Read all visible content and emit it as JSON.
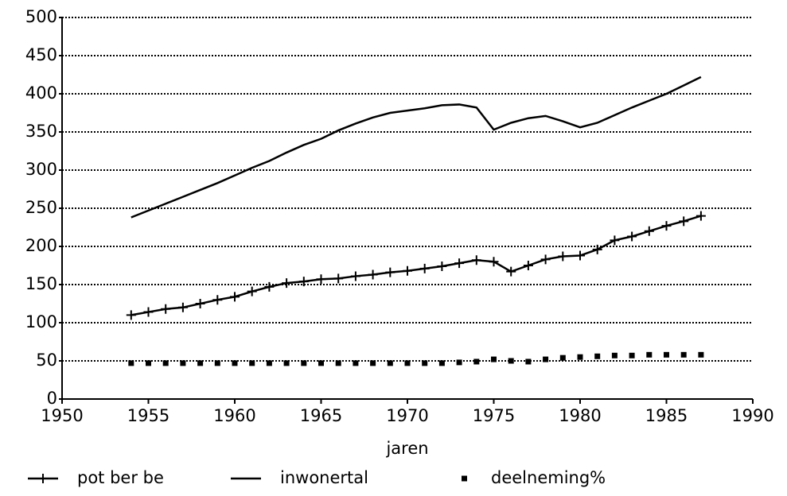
{
  "chart_data": {
    "type": "line",
    "xlabel": "jaren",
    "x": [
      1954,
      1955,
      1956,
      1957,
      1958,
      1959,
      1960,
      1961,
      1962,
      1963,
      1964,
      1965,
      1966,
      1967,
      1968,
      1969,
      1970,
      1971,
      1972,
      1973,
      1974,
      1975,
      1976,
      1977,
      1978,
      1979,
      1980,
      1981,
      1982,
      1983,
      1984,
      1985,
      1986,
      1987
    ],
    "series": [
      {
        "name": "pot ber be",
        "color": "#000000",
        "marker": "plus",
        "line": true,
        "values": [
          110,
          114,
          118,
          120,
          125,
          130,
          134,
          141,
          147,
          152,
          154,
          157,
          158,
          161,
          163,
          166,
          168,
          171,
          174,
          178,
          182,
          180,
          167,
          175,
          183,
          187,
          188,
          196,
          208,
          213,
          220,
          227,
          233,
          240
        ]
      },
      {
        "name": "inwonertal",
        "color": "#000000",
        "marker": "none",
        "line": true,
        "values": [
          238,
          247,
          256,
          265,
          274,
          283,
          293,
          303,
          312,
          323,
          333,
          341,
          352,
          361,
          369,
          375,
          378,
          381,
          385,
          386,
          382,
          353,
          362,
          368,
          371,
          364,
          356,
          362,
          372,
          382,
          391,
          400,
          411,
          422
        ]
      },
      {
        "name": "deelneming%",
        "color": "#000000",
        "marker": "square",
        "line": false,
        "values": [
          47,
          47,
          47,
          47,
          47,
          47,
          47,
          47,
          47,
          47,
          47,
          47,
          47,
          47,
          47,
          47,
          47,
          47,
          47,
          48,
          49,
          52,
          50,
          49,
          52,
          54,
          55,
          56,
          57,
          57,
          58,
          58,
          58,
          58
        ]
      }
    ],
    "xlim": [
      1950,
      1990
    ],
    "xticks": [
      1950,
      1955,
      1960,
      1965,
      1970,
      1975,
      1980,
      1985,
      1990
    ],
    "ylim": [
      0,
      500
    ],
    "yticks": [
      0,
      50,
      100,
      150,
      200,
      250,
      300,
      350,
      400,
      450,
      500
    ],
    "grid": true,
    "legend": "bottom"
  }
}
